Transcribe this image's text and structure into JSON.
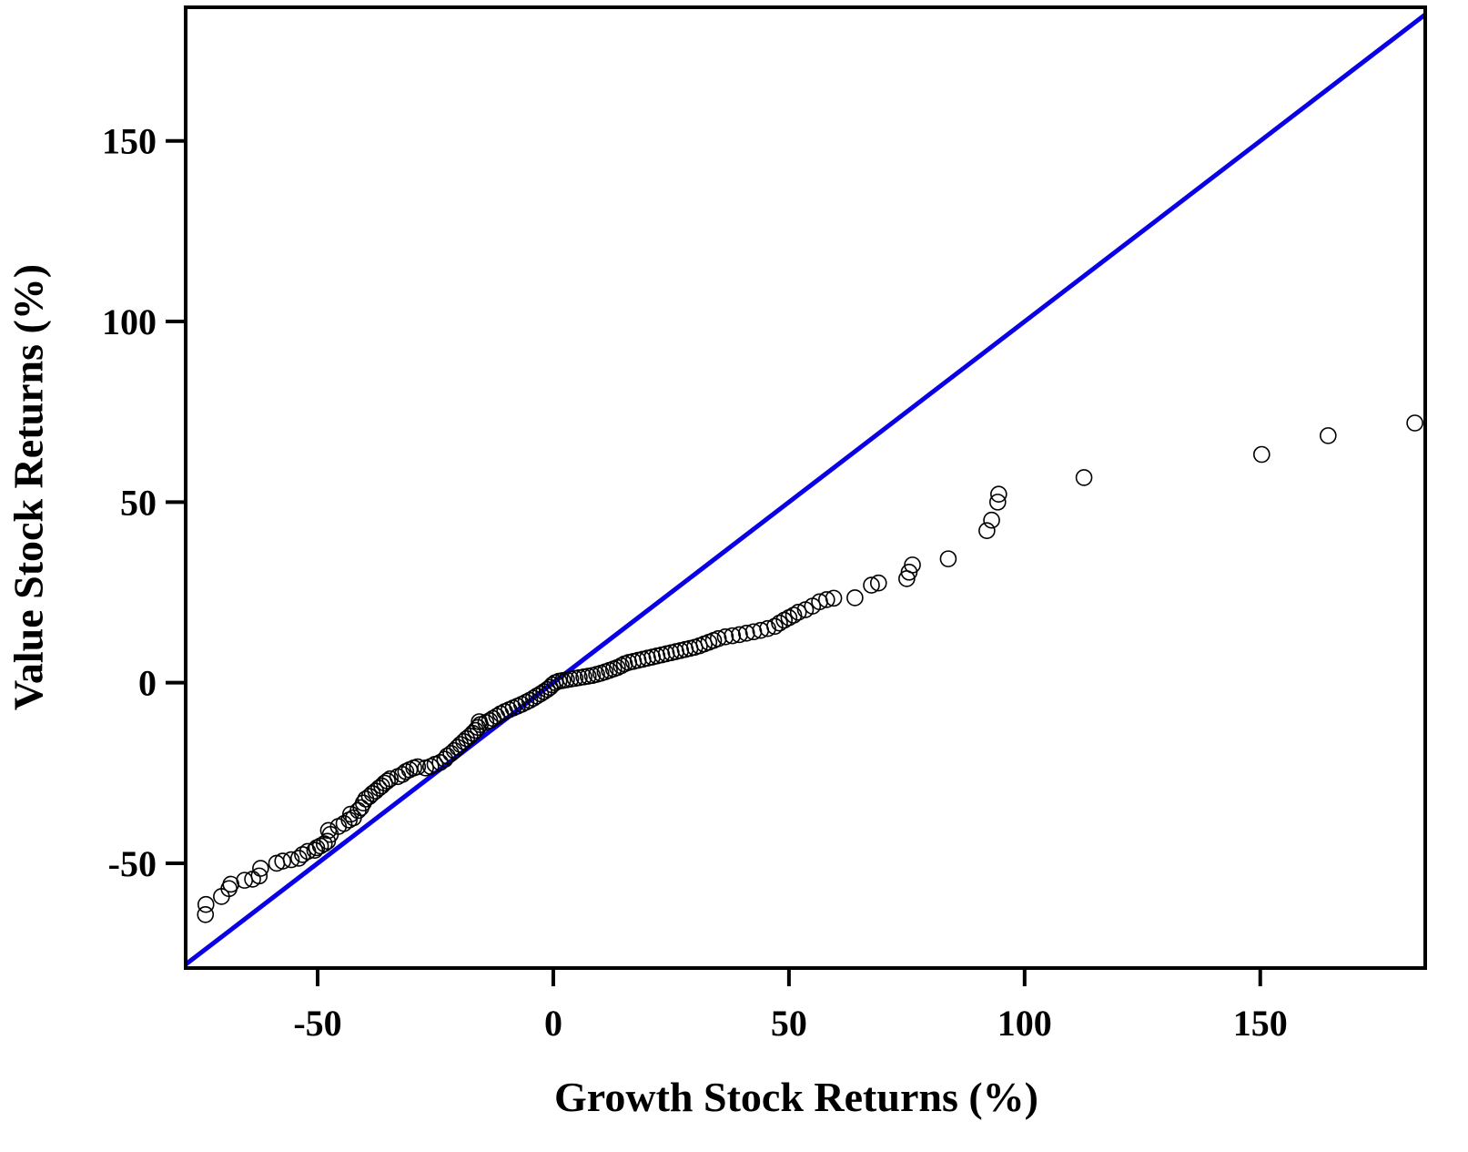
{
  "chart_data": {
    "type": "scatter",
    "title": "",
    "xlabel": "Growth Stock Returns (%)",
    "ylabel": "Value Stock Returns (%)",
    "xlim": [
      -78,
      185
    ],
    "ylim": [
      -79,
      187
    ],
    "xticks": [
      -50,
      0,
      50,
      100,
      150
    ],
    "yticks": [
      -50,
      0,
      50,
      100,
      150
    ],
    "xtick_labels": [
      "-50",
      "0",
      "50",
      "100",
      "150"
    ],
    "ytick_labels": [
      "-50",
      "0",
      "50",
      "100",
      "150"
    ],
    "grid": false,
    "legend": "none",
    "marker": "open-circle",
    "marker_color": "#000000",
    "reference_line": {
      "type": "y = x",
      "color": "#0a00e6"
    },
    "series": [
      {
        "points": [
          [
            -73.8,
            -64.2
          ],
          [
            -73.7,
            -61.4
          ],
          [
            -70.4,
            -59.2
          ],
          [
            -68.8,
            -57.0
          ],
          [
            -68.4,
            -55.8
          ],
          [
            -65.5,
            -54.7
          ],
          [
            -63.8,
            -54.4
          ],
          [
            -62.4,
            -53.5
          ],
          [
            -62.1,
            -51.4
          ],
          [
            -58.7,
            -50.0
          ],
          [
            -57.4,
            -49.4
          ],
          [
            -55.6,
            -49.0
          ],
          [
            -54.0,
            -48.6
          ],
          [
            -53.2,
            -47.6
          ],
          [
            -52.1,
            -46.7
          ],
          [
            -50.6,
            -46.4
          ],
          [
            -50.2,
            -45.7
          ],
          [
            -49.4,
            -45.2
          ],
          [
            -48.6,
            -44.6
          ],
          [
            -47.9,
            -43.9
          ],
          [
            -47.3,
            -42.0
          ],
          [
            -47.7,
            -40.9
          ],
          [
            -45.6,
            -39.8
          ],
          [
            -44.4,
            -39.0
          ],
          [
            -43.3,
            -38.0
          ],
          [
            -42.4,
            -37.4
          ],
          [
            -43.0,
            -36.4
          ],
          [
            -41.4,
            -35.4
          ],
          [
            -40.8,
            -34.6
          ],
          [
            -40.3,
            -33.3
          ],
          [
            -39.8,
            -32.2
          ],
          [
            -39.0,
            -31.5
          ],
          [
            -38.4,
            -30.7
          ],
          [
            -37.7,
            -30.0
          ],
          [
            -37.0,
            -29.2
          ],
          [
            -36.4,
            -28.6
          ],
          [
            -35.8,
            -27.8
          ],
          [
            -35.2,
            -27.2
          ],
          [
            -34.6,
            -26.6
          ],
          [
            -33.0,
            -26.0
          ],
          [
            -32.0,
            -25.4
          ],
          [
            -31.3,
            -24.6
          ],
          [
            -30.5,
            -24.1
          ],
          [
            -29.6,
            -23.6
          ],
          [
            -28.8,
            -23.3
          ],
          [
            -27.1,
            -23.6
          ],
          [
            -26.0,
            -23.2
          ],
          [
            -25.1,
            -22.6
          ],
          [
            -24.0,
            -22.1
          ],
          [
            -23.0,
            -21.2
          ],
          [
            -22.5,
            -20.3
          ],
          [
            -21.7,
            -19.6
          ],
          [
            -21.0,
            -18.8
          ],
          [
            -20.3,
            -17.9
          ],
          [
            -19.7,
            -17.1
          ],
          [
            -19.0,
            -16.3
          ],
          [
            -18.4,
            -15.5
          ],
          [
            -17.7,
            -14.8
          ],
          [
            -17.1,
            -14.0
          ],
          [
            -16.5,
            -13.2
          ],
          [
            -16.0,
            -12.4
          ],
          [
            -15.5,
            -11.6
          ],
          [
            -15.7,
            -10.8
          ],
          [
            -14.3,
            -11.0
          ],
          [
            -13.5,
            -10.5
          ],
          [
            -12.8,
            -9.9
          ],
          [
            -12.0,
            -9.3
          ],
          [
            -11.2,
            -8.6
          ],
          [
            -10.3,
            -8.0
          ],
          [
            -9.4,
            -7.5
          ],
          [
            -8.5,
            -7.0
          ],
          [
            -7.6,
            -6.5
          ],
          [
            -6.7,
            -6.0
          ],
          [
            -5.8,
            -5.4
          ],
          [
            -5.0,
            -4.9
          ],
          [
            -4.2,
            -4.3
          ],
          [
            -3.5,
            -3.7
          ],
          [
            -2.7,
            -3.1
          ],
          [
            -2.0,
            -2.5
          ],
          [
            -1.3,
            -1.9
          ],
          [
            -0.7,
            -1.3
          ],
          [
            -0.2,
            -0.6
          ],
          [
            0.4,
            0.0
          ],
          [
            1.2,
            0.4
          ],
          [
            2.0,
            0.6
          ],
          [
            2.8,
            0.8
          ],
          [
            3.7,
            1.0
          ],
          [
            4.6,
            1.2
          ],
          [
            5.5,
            1.4
          ],
          [
            6.5,
            1.6
          ],
          [
            7.4,
            1.8
          ],
          [
            8.3,
            2.0
          ],
          [
            9.2,
            2.3
          ],
          [
            10.1,
            2.6
          ],
          [
            11.0,
            3.0
          ],
          [
            11.9,
            3.4
          ],
          [
            12.8,
            3.8
          ],
          [
            13.6,
            4.2
          ],
          [
            14.4,
            4.7
          ],
          [
            15.1,
            5.2
          ],
          [
            16.0,
            5.6
          ],
          [
            17.0,
            5.9
          ],
          [
            18.0,
            6.2
          ],
          [
            19.0,
            6.5
          ],
          [
            20.0,
            6.8
          ],
          [
            21.0,
            7.1
          ],
          [
            22.0,
            7.4
          ],
          [
            23.0,
            7.7
          ],
          [
            24.0,
            8.0
          ],
          [
            25.0,
            8.3
          ],
          [
            26.0,
            8.6
          ],
          [
            27.0,
            8.9
          ],
          [
            28.0,
            9.2
          ],
          [
            29.0,
            9.5
          ],
          [
            30.0,
            9.8
          ],
          [
            31.0,
            10.2
          ],
          [
            32.0,
            10.7
          ],
          [
            33.0,
            11.2
          ],
          [
            34.0,
            11.7
          ],
          [
            35.0,
            12.2
          ],
          [
            36.5,
            12.7
          ],
          [
            38.0,
            13.0
          ],
          [
            39.5,
            13.3
          ],
          [
            41.0,
            13.7
          ],
          [
            42.5,
            14.1
          ],
          [
            44.0,
            14.5
          ],
          [
            45.5,
            15.0
          ],
          [
            47.0,
            15.6
          ],
          [
            48.0,
            16.5
          ],
          [
            49.0,
            17.3
          ],
          [
            50.0,
            18.0
          ],
          [
            51.0,
            18.7
          ],
          [
            52.0,
            19.5
          ],
          [
            53.5,
            20.2
          ],
          [
            55.0,
            21.2
          ],
          [
            56.5,
            22.4
          ],
          [
            58.0,
            23.0
          ],
          [
            59.5,
            23.4
          ],
          [
            64.0,
            23.5
          ],
          [
            67.5,
            27.0
          ],
          [
            69.0,
            27.6
          ],
          [
            75.0,
            28.8
          ],
          [
            75.5,
            30.6
          ],
          [
            76.2,
            32.6
          ],
          [
            83.8,
            34.3
          ],
          [
            92.0,
            42.1
          ],
          [
            93.0,
            45.0
          ],
          [
            94.3,
            50.0
          ],
          [
            94.5,
            52.2
          ],
          [
            112.6,
            56.8
          ],
          [
            150.3,
            63.2
          ],
          [
            164.4,
            68.4
          ],
          [
            182.8,
            71.9
          ]
        ]
      }
    ]
  }
}
